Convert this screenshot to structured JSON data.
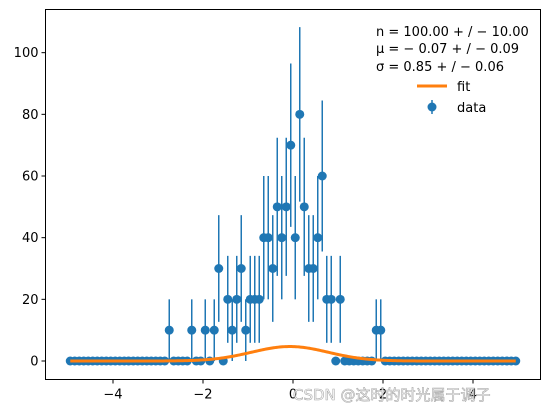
{
  "chart_data": {
    "type": "scatter",
    "title": "",
    "xlabel": "",
    "ylabel": "",
    "xlim": [
      -5.5,
      5.5
    ],
    "ylim": [
      -6,
      114
    ],
    "x_ticks": [
      -4,
      -2,
      0,
      2,
      4
    ],
    "x_tick_labels": [
      "−4",
      "−2",
      "0",
      "2",
      "4"
    ],
    "y_ticks": [
      0,
      20,
      40,
      60,
      80,
      100
    ],
    "y_tick_labels": [
      "0",
      "20",
      "40",
      "60",
      "80",
      "100"
    ],
    "grid": false,
    "annotations": [
      "n = 100.00 + / − 10.00",
      "μ = − 0.07 + / − 0.09",
      "σ = 0.85 + / − 0.06"
    ],
    "legend": {
      "placement": "top-right",
      "entries": [
        {
          "label": "fit",
          "color": "#ff7f0e",
          "marker": "line"
        },
        {
          "label": "data",
          "color": "#1f77b4",
          "marker": "errorbar"
        }
      ]
    },
    "series": [
      {
        "name": "data",
        "kind": "errorbar",
        "color": "#1f77b4",
        "x": [
          -4.95,
          -4.85,
          -4.75,
          -4.65,
          -4.55,
          -4.45,
          -4.35,
          -4.25,
          -4.15,
          -4.05,
          -3.95,
          -3.85,
          -3.75,
          -3.65,
          -3.55,
          -3.45,
          -3.35,
          -3.25,
          -3.15,
          -3.05,
          -2.95,
          -2.85,
          -2.75,
          -2.65,
          -2.55,
          -2.45,
          -2.35,
          -2.25,
          -2.15,
          -2.05,
          -1.95,
          -1.85,
          -1.75,
          -1.65,
          -1.55,
          -1.45,
          -1.35,
          -1.25,
          -1.15,
          -1.05,
          -0.95,
          -0.85,
          -0.75,
          -0.65,
          -0.55,
          -0.45,
          -0.35,
          -0.25,
          -0.15,
          -0.05,
          0.05,
          0.15,
          0.25,
          0.35,
          0.45,
          0.55,
          0.65,
          0.75,
          0.85,
          0.95,
          1.05,
          1.15,
          1.25,
          1.35,
          1.45,
          1.55,
          1.65,
          1.75,
          1.85,
          1.95,
          2.05,
          2.15,
          2.25,
          2.35,
          2.45,
          2.55,
          2.65,
          2.75,
          2.85,
          2.95,
          3.05,
          3.15,
          3.25,
          3.35,
          3.45,
          3.55,
          3.65,
          3.75,
          3.85,
          3.95,
          4.05,
          4.15,
          4.25,
          4.35,
          4.45,
          4.55,
          4.65,
          4.75,
          4.85,
          4.95
        ],
        "y": [
          0,
          0,
          0,
          0,
          0,
          0,
          0,
          0,
          0,
          0,
          0,
          0,
          0,
          0,
          0,
          0,
          0,
          0,
          0,
          0,
          0,
          0,
          10,
          0,
          0,
          0,
          0,
          10,
          0,
          0,
          10,
          0,
          10,
          30,
          0,
          20,
          10,
          20,
          30,
          10,
          20,
          20,
          20,
          40,
          40,
          30,
          50,
          40,
          50,
          70,
          40,
          80,
          50,
          30,
          30,
          40,
          60,
          20,
          20,
          0,
          20,
          0,
          0,
          0,
          0,
          0,
          0,
          0,
          10,
          10,
          0,
          0,
          0,
          0,
          0,
          0,
          0,
          0,
          0,
          0,
          0,
          0,
          0,
          0,
          0,
          0,
          0,
          0,
          0,
          0,
          0,
          0,
          0,
          0,
          0,
          0,
          0,
          0,
          0,
          0
        ],
        "yerr": [
          0,
          0,
          0,
          0,
          0,
          0,
          0,
          0,
          0,
          0,
          0,
          0,
          0,
          0,
          0,
          0,
          0,
          0,
          0,
          0,
          0,
          0,
          10,
          0,
          0,
          0,
          0,
          10,
          0,
          0,
          10,
          0,
          10,
          17.3,
          0,
          14.1,
          10,
          14.1,
          17.3,
          10,
          14.1,
          14.1,
          14.1,
          20,
          20,
          17.3,
          22.4,
          20,
          22.4,
          26.5,
          20,
          28.3,
          22.4,
          17.3,
          17.3,
          20,
          24.5,
          14.1,
          14.1,
          0,
          14.1,
          0,
          0,
          0,
          0,
          0,
          0,
          0,
          10,
          10,
          0,
          0,
          0,
          0,
          0,
          0,
          0,
          0,
          0,
          0,
          0,
          0,
          0,
          0,
          0,
          0,
          0,
          0,
          0,
          0,
          0,
          0,
          0,
          0,
          0,
          0,
          0,
          0,
          0,
          0
        ]
      },
      {
        "name": "fit",
        "kind": "curve",
        "color": "#ff7f0e",
        "model": "gaussian",
        "params": {
          "n": 100.0,
          "mu": -0.07,
          "sigma": 0.85,
          "bin_width": 0.1
        },
        "x_range": [
          -4.95,
          4.95
        ]
      }
    ]
  },
  "watermark": "CSDN @这时的时光属于调子"
}
